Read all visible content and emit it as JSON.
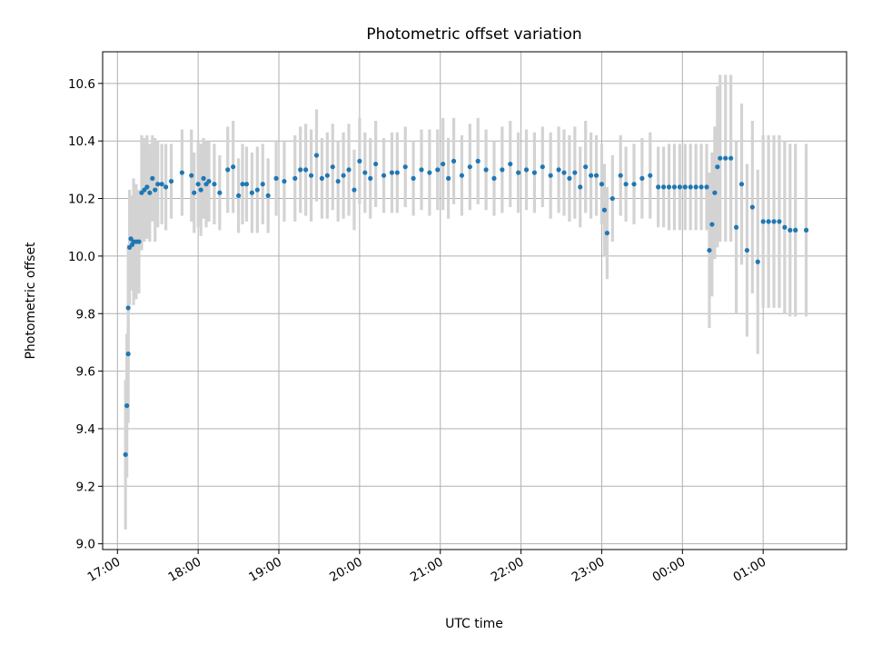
{
  "chart_data": {
    "type": "scatter",
    "title": "Photometric offset variation",
    "xlabel": "UTC time",
    "ylabel": "Photometric offset",
    "x_type": "time",
    "x_ticks": [
      "17:00",
      "18:00",
      "19:00",
      "20:00",
      "21:00",
      "22:00",
      "23:00",
      "00:00",
      "01:00"
    ],
    "y_ticks": [
      "9.0",
      "9.2",
      "9.4",
      "9.6",
      "9.8",
      "10.0",
      "10.2",
      "10.4",
      "10.6"
    ],
    "ylim": [
      8.98,
      10.71
    ],
    "xlim": [
      "16:49",
      "02:02"
    ],
    "grid": true,
    "colors": {
      "points": "#1f77b4",
      "errorbars": "#d3d3d3"
    },
    "x": [
      "17:06",
      "17:07",
      "17:08",
      "17:08",
      "17:09",
      "17:10",
      "17:11",
      "17:12",
      "17:14",
      "17:16",
      "17:18",
      "17:20",
      "17:22",
      "17:24",
      "17:26",
      "17:28",
      "17:30",
      "17:33",
      "17:36",
      "17:40",
      "17:48",
      "17:55",
      "17:57",
      "18:00",
      "18:02",
      "18:04",
      "18:06",
      "18:08",
      "18:12",
      "18:16",
      "18:22",
      "18:26",
      "18:30",
      "18:33",
      "18:36",
      "18:40",
      "18:44",
      "18:48",
      "18:52",
      "18:58",
      "19:04",
      "19:12",
      "19:16",
      "19:20",
      "19:24",
      "19:28",
      "19:32",
      "19:36",
      "19:40",
      "19:44",
      "19:48",
      "19:52",
      "19:56",
      "20:00",
      "20:04",
      "20:08",
      "20:12",
      "20:18",
      "20:24",
      "20:28",
      "20:34",
      "20:40",
      "20:46",
      "20:52",
      "20:58",
      "21:02",
      "21:06",
      "21:10",
      "21:16",
      "21:22",
      "21:28",
      "21:34",
      "21:40",
      "21:46",
      "21:52",
      "21:58",
      "22:04",
      "22:10",
      "22:16",
      "22:22",
      "22:28",
      "22:32",
      "22:36",
      "22:40",
      "22:44",
      "22:48",
      "22:52",
      "22:56",
      "23:00",
      "23:02",
      "23:04",
      "23:08",
      "23:14",
      "23:18",
      "23:24",
      "23:30",
      "23:36",
      "23:42",
      "23:46",
      "23:50",
      "23:54",
      "23:58",
      "00:02",
      "00:06",
      "00:10",
      "00:14",
      "00:18",
      "00:20",
      "00:22",
      "00:24",
      "00:26",
      "00:28",
      "00:32",
      "00:36",
      "00:40",
      "00:44",
      "00:48",
      "00:52",
      "00:56",
      "01:00",
      "01:04",
      "01:08",
      "01:12",
      "01:16",
      "01:20",
      "01:24",
      "01:32"
    ],
    "y": [
      9.31,
      9.48,
      9.66,
      9.82,
      10.03,
      10.06,
      10.04,
      10.05,
      10.05,
      10.05,
      10.22,
      10.23,
      10.24,
      10.22,
      10.27,
      10.23,
      10.25,
      10.25,
      10.24,
      10.26,
      10.29,
      10.28,
      10.22,
      10.25,
      10.23,
      10.27,
      10.25,
      10.26,
      10.25,
      10.22,
      10.3,
      10.31,
      10.21,
      10.25,
      10.25,
      10.22,
      10.23,
      10.25,
      10.21,
      10.27,
      10.26,
      10.27,
      10.3,
      10.3,
      10.28,
      10.35,
      10.27,
      10.28,
      10.31,
      10.26,
      10.28,
      10.3,
      10.23,
      10.33,
      10.29,
      10.27,
      10.32,
      10.28,
      10.29,
      10.29,
      10.31,
      10.27,
      10.3,
      10.29,
      10.3,
      10.32,
      10.27,
      10.33,
      10.28,
      10.31,
      10.33,
      10.3,
      10.27,
      10.3,
      10.32,
      10.29,
      10.3,
      10.29,
      10.31,
      10.28,
      10.3,
      10.29,
      10.27,
      10.29,
      10.24,
      10.31,
      10.28,
      10.28,
      10.25,
      10.16,
      10.08,
      10.2,
      10.28,
      10.25,
      10.25,
      10.27,
      10.28,
      10.24,
      10.24,
      10.24,
      10.24,
      10.24,
      10.24,
      10.24,
      10.24,
      10.24,
      10.24,
      10.02,
      10.11,
      10.22,
      10.31,
      10.34,
      10.34,
      10.34,
      10.1,
      10.25,
      10.02,
      10.17,
      9.98,
      10.12,
      10.12,
      10.12,
      10.12,
      10.1,
      10.09,
      10.09,
      10.09
    ],
    "yerr": [
      0.26,
      0.25,
      0.24,
      0.22,
      0.2,
      0.15,
      0.16,
      0.22,
      0.2,
      0.18,
      0.2,
      0.18,
      0.18,
      0.17,
      0.15,
      0.18,
      0.15,
      0.14,
      0.15,
      0.13,
      0.15,
      0.16,
      0.14,
      0.15,
      0.16,
      0.14,
      0.15,
      0.14,
      0.14,
      0.13,
      0.15,
      0.16,
      0.13,
      0.14,
      0.13,
      0.14,
      0.15,
      0.14,
      0.13,
      0.13,
      0.14,
      0.15,
      0.15,
      0.16,
      0.16,
      0.16,
      0.14,
      0.15,
      0.15,
      0.14,
      0.15,
      0.16,
      0.14,
      0.15,
      0.14,
      0.14,
      0.15,
      0.13,
      0.14,
      0.14,
      0.14,
      0.13,
      0.14,
      0.15,
      0.14,
      0.16,
      0.14,
      0.15,
      0.14,
      0.15,
      0.15,
      0.14,
      0.13,
      0.15,
      0.15,
      0.14,
      0.14,
      0.14,
      0.14,
      0.15,
      0.15,
      0.15,
      0.15,
      0.16,
      0.14,
      0.16,
      0.15,
      0.14,
      0.14,
      0.16,
      0.16,
      0.15,
      0.14,
      0.13,
      0.14,
      0.14,
      0.15,
      0.14,
      0.14,
      0.15,
      0.15,
      0.15,
      0.15,
      0.15,
      0.15,
      0.15,
      0.15,
      0.27,
      0.25,
      0.23,
      0.28,
      0.29,
      0.29,
      0.29,
      0.3,
      0.28,
      0.3,
      0.3,
      0.32,
      0.3,
      0.3,
      0.3,
      0.3,
      0.3,
      0.3,
      0.3,
      0.3
    ]
  }
}
